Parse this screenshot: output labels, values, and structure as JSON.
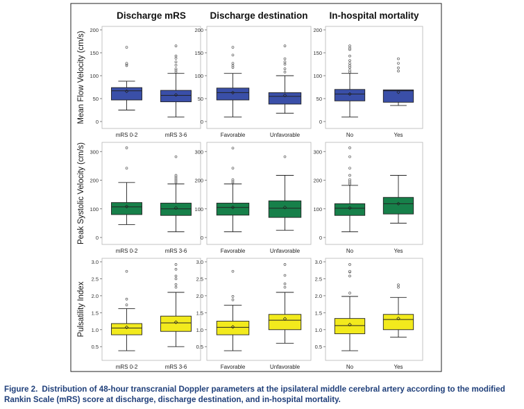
{
  "caption": {
    "label": "Figure 2.",
    "text": "Distribution of 48-hour transcranial Doppler parameters at the ipsilateral middle cerebral artery according to the modified Rankin Scale (mRS) score at discharge, discharge destination, and in-hospital mortality."
  },
  "columns": [
    "Discharge mRS",
    "Discharge destination",
    "In-hospital mortality"
  ],
  "rows": [
    {
      "ylabel": "Mean Flow Velocity (cm/s)",
      "ylim": [
        0,
        200
      ],
      "ticks": [
        0,
        50,
        100,
        150,
        200
      ],
      "tick_labels": [
        "0",
        "50",
        "100",
        "150",
        "200"
      ],
      "color": "#3a4fa8"
    },
    {
      "ylabel": "Peak Systolic Velocity (cm/s)",
      "ylim": [
        0,
        320
      ],
      "ticks": [
        0,
        100,
        200,
        300
      ],
      "tick_labels": [
        "0",
        "100",
        "200",
        "300"
      ],
      "color": "#17804a"
    },
    {
      "ylabel": "Pulsatility Index",
      "ylim": [
        0.3,
        3.0
      ],
      "ticks": [
        0.5,
        1.0,
        1.5,
        2.0,
        2.5,
        3.0
      ],
      "tick_labels": [
        "0.5",
        "1.0",
        "1.5",
        "2.0",
        "2.5",
        "3.0"
      ],
      "color": "#f2ea1d"
    }
  ],
  "chart_data": [
    {
      "type": "box",
      "row": 0,
      "col": 0,
      "title": "Discharge mRS",
      "ylabel": "Mean Flow Velocity (cm/s)",
      "ylim": [
        0,
        200
      ],
      "categories": [
        "mRS 0-2",
        "mRS 3-6"
      ],
      "boxes": [
        {
          "min": 25,
          "q1": 47,
          "median": 67,
          "q3": 74,
          "max": 88,
          "mean": 66,
          "outliers": [
            122,
            125,
            127,
            162
          ]
        },
        {
          "min": 10,
          "q1": 43,
          "median": 57,
          "q3": 68,
          "max": 105,
          "mean": 58,
          "outliers": [
            108,
            112,
            115,
            123,
            130,
            138,
            143,
            165
          ]
        }
      ]
    },
    {
      "type": "box",
      "row": 0,
      "col": 1,
      "title": "Discharge destination",
      "ylabel": "Mean Flow Velocity (cm/s)",
      "ylim": [
        0,
        200
      ],
      "categories": [
        "Favorable",
        "Unfavorable"
      ],
      "boxes": [
        {
          "min": 10,
          "q1": 47,
          "median": 63,
          "q3": 73,
          "max": 105,
          "mean": 63,
          "outliers": [
            118,
            122,
            127,
            145,
            162
          ]
        },
        {
          "min": 18,
          "q1": 38,
          "median": 55,
          "q3": 63,
          "max": 100,
          "mean": 57,
          "outliers": [
            108,
            115,
            125,
            130,
            137,
            165
          ]
        }
      ]
    },
    {
      "type": "box",
      "row": 0,
      "col": 2,
      "title": "In-hospital mortality",
      "ylabel": "Mean Flow Velocity (cm/s)",
      "ylim": [
        0,
        200
      ],
      "categories": [
        "No",
        "Yes"
      ],
      "boxes": [
        {
          "min": 10,
          "q1": 45,
          "median": 60,
          "q3": 70,
          "max": 105,
          "mean": 60,
          "outliers": [
            108,
            112,
            118,
            122,
            127,
            133,
            143,
            157,
            160,
            165
          ]
        },
        {
          "min": 35,
          "q1": 42,
          "median": 67,
          "q3": 69,
          "max": 69,
          "mean": 64,
          "outliers": [
            110,
            117,
            127,
            137
          ]
        }
      ]
    },
    {
      "type": "box",
      "row": 1,
      "col": 0,
      "title": "Discharge mRS",
      "ylabel": "Peak Systolic Velocity (cm/s)",
      "ylim": [
        0,
        320
      ],
      "categories": [
        "mRS 0-2",
        "mRS 3-6"
      ],
      "boxes": [
        {
          "min": 45,
          "q1": 80,
          "median": 107,
          "q3": 122,
          "max": 192,
          "mean": 108,
          "outliers": [
            242,
            313
          ]
        },
        {
          "min": 20,
          "q1": 77,
          "median": 100,
          "q3": 120,
          "max": 187,
          "mean": 103,
          "outliers": [
            192,
            197,
            202,
            207,
            212,
            217,
            282
          ]
        }
      ]
    },
    {
      "type": "box",
      "row": 1,
      "col": 1,
      "title": "Discharge destination",
      "ylabel": "Peak Systolic Velocity (cm/s)",
      "ylim": [
        0,
        320
      ],
      "categories": [
        "Favorable",
        "Unfavorable"
      ],
      "boxes": [
        {
          "min": 20,
          "q1": 78,
          "median": 105,
          "q3": 120,
          "max": 187,
          "mean": 105,
          "outliers": [
            192,
            197,
            202,
            242,
            312
          ]
        },
        {
          "min": 25,
          "q1": 70,
          "median": 102,
          "q3": 128,
          "max": 217,
          "mean": 105,
          "outliers": [
            282
          ]
        }
      ]
    },
    {
      "type": "box",
      "row": 1,
      "col": 2,
      "title": "In-hospital mortality",
      "ylabel": "Peak Systolic Velocity (cm/s)",
      "ylim": [
        0,
        320
      ],
      "categories": [
        "No",
        "Yes"
      ],
      "boxes": [
        {
          "min": 20,
          "q1": 77,
          "median": 102,
          "q3": 118,
          "max": 182,
          "mean": 103,
          "outliers": [
            187,
            192,
            197,
            202,
            217,
            242,
            282,
            313
          ]
        },
        {
          "min": 50,
          "q1": 82,
          "median": 118,
          "q3": 140,
          "max": 217,
          "mean": 118,
          "outliers": []
        }
      ]
    },
    {
      "type": "box",
      "row": 2,
      "col": 0,
      "title": "Discharge mRS",
      "ylabel": "Pulsatility Index",
      "ylim": [
        0.3,
        3.0
      ],
      "categories": [
        "mRS 0-2",
        "mRS 3-6"
      ],
      "boxes": [
        {
          "min": 0.38,
          "q1": 0.85,
          "median": 1.05,
          "q3": 1.18,
          "max": 1.62,
          "mean": 1.07,
          "outliers": [
            1.73,
            1.9,
            2.72
          ]
        },
        {
          "min": 0.5,
          "q1": 0.95,
          "median": 1.2,
          "q3": 1.4,
          "max": 2.1,
          "mean": 1.22,
          "outliers": [
            2.25,
            2.33,
            2.5,
            2.58,
            2.78,
            2.92
          ]
        }
      ]
    },
    {
      "type": "box",
      "row": 2,
      "col": 1,
      "title": "Discharge destination",
      "ylabel": "Pulsatility Index",
      "ylim": [
        0.3,
        3.0
      ],
      "categories": [
        "Favorable",
        "Unfavorable"
      ],
      "boxes": [
        {
          "min": 0.38,
          "q1": 0.85,
          "median": 1.07,
          "q3": 1.25,
          "max": 1.72,
          "mean": 1.08,
          "outliers": [
            1.88,
            1.98,
            2.72
          ]
        },
        {
          "min": 0.6,
          "q1": 1.0,
          "median": 1.28,
          "q3": 1.45,
          "max": 2.1,
          "mean": 1.32,
          "outliers": [
            2.25,
            2.35,
            2.6,
            2.92
          ]
        }
      ]
    },
    {
      "type": "box",
      "row": 2,
      "col": 2,
      "title": "In-hospital mortality",
      "ylabel": "Pulsatility Index",
      "ylim": [
        0.3,
        3.0
      ],
      "categories": [
        "No",
        "Yes"
      ],
      "boxes": [
        {
          "min": 0.38,
          "q1": 0.88,
          "median": 1.12,
          "q3": 1.33,
          "max": 1.98,
          "mean": 1.15,
          "outliers": [
            2.08,
            2.58,
            2.7,
            2.72,
            2.92
          ]
        },
        {
          "min": 0.78,
          "q1": 1.0,
          "median": 1.3,
          "q3": 1.45,
          "max": 1.95,
          "mean": 1.33,
          "outliers": [
            2.25,
            2.32
          ]
        }
      ]
    }
  ]
}
